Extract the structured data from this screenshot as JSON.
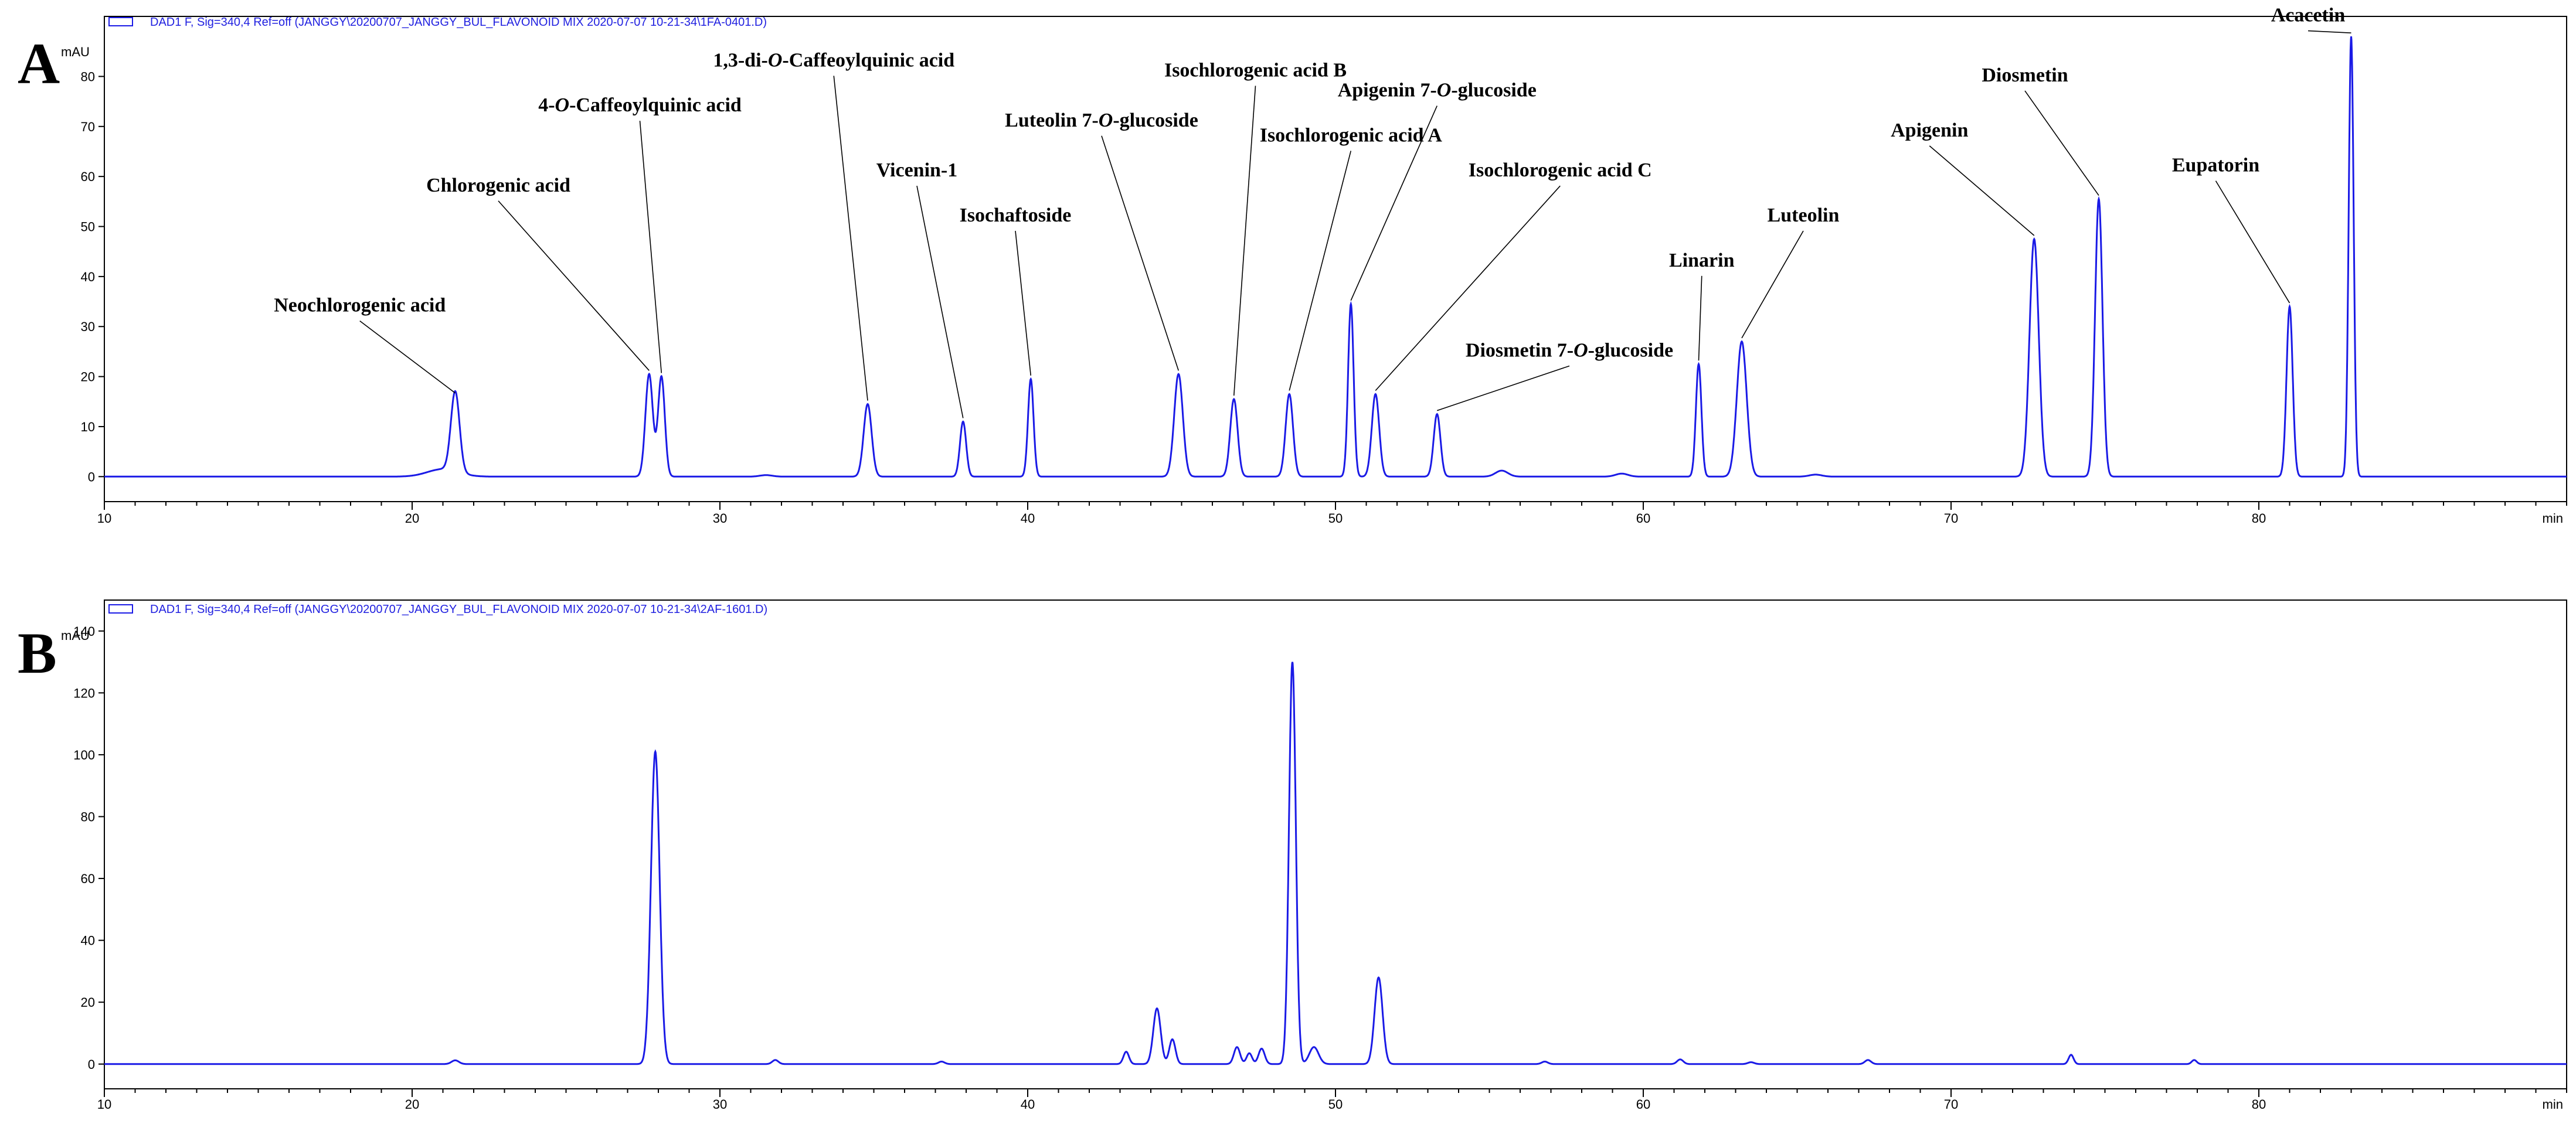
{
  "colors": {
    "trace": "#1a1ae6",
    "legend_text": "#2020e0",
    "frame": "#000000"
  },
  "chart_data": [
    {
      "type": "line",
      "panel": "A",
      "legend": "DAD1 F, Sig=340,4 Ref=off (JANGGY\\20200707_JANGGY_BUL_FLAVONOID MIX 2020-07-07 10-21-34\\1FA-0401.D)",
      "ylabel": "mAU",
      "xlabel": "min",
      "xlim": [
        10,
        90
      ],
      "ylim": [
        -5,
        92
      ],
      "xticks": [
        10,
        20,
        30,
        40,
        50,
        60,
        70,
        80
      ],
      "yticks": [
        0,
        10,
        20,
        30,
        40,
        50,
        60,
        70,
        80
      ],
      "baseline_bumps": [
        {
          "x": 21.0,
          "y": 1.5,
          "w": 0.5
        },
        {
          "x": 31.5,
          "y": 0.3,
          "w": 0.2
        },
        {
          "x": 55.4,
          "y": 1.2,
          "w": 0.2
        },
        {
          "x": 59.3,
          "y": 0.6,
          "w": 0.2
        },
        {
          "x": 65.6,
          "y": 0.4,
          "w": 0.2
        }
      ],
      "peaks": [
        {
          "x": 21.4,
          "y": 16,
          "w": 0.14,
          "label": [
            "Neochlorogenic acid"
          ],
          "lx": 18.3,
          "ly": 33
        },
        {
          "x": 27.7,
          "y": 20.5,
          "w": 0.12,
          "label": [
            "Chlorogenic acid"
          ],
          "lx": 22.8,
          "ly": 57
        },
        {
          "x": 28.1,
          "y": 20,
          "w": 0.11,
          "label": [
            "4-",
            "O",
            "-Caffeoylquinic acid"
          ],
          "lx": 27.4,
          "ly": 73
        },
        {
          "x": 34.8,
          "y": 14.5,
          "w": 0.13,
          "label": [
            "1,3-di-",
            "O",
            "-Caffeoylquinic acid"
          ],
          "lx": 33.7,
          "ly": 82
        },
        {
          "x": 37.9,
          "y": 11,
          "w": 0.1,
          "label": [
            "Vicenin-1"
          ],
          "lx": 36.4,
          "ly": 60
        },
        {
          "x": 40.1,
          "y": 19.5,
          "w": 0.09,
          "label": [
            "Isochaftoside"
          ],
          "lx": 39.6,
          "ly": 51
        },
        {
          "x": 44.9,
          "y": 20.5,
          "w": 0.14,
          "label": [
            "Luteolin 7-",
            "O",
            "-glucoside"
          ],
          "lx": 42.4,
          "ly": 70
        },
        {
          "x": 46.7,
          "y": 15.5,
          "w": 0.12,
          "label": [
            "Isochlorogenic acid B"
          ],
          "lx": 47.4,
          "ly": 80
        },
        {
          "x": 48.5,
          "y": 16.5,
          "w": 0.12,
          "label": [
            "Isochlorogenic acid A"
          ],
          "lx": 50.5,
          "ly": 67
        },
        {
          "x": 50.5,
          "y": 34.5,
          "w": 0.09,
          "label": [
            "Apigenin 7-",
            "O",
            "-glucoside"
          ],
          "lx": 53.3,
          "ly": 76
        },
        {
          "x": 51.3,
          "y": 16.5,
          "w": 0.12,
          "label": [
            "Isochlorogenic acid C"
          ],
          "lx": 57.3,
          "ly": 60
        },
        {
          "x": 53.3,
          "y": 12.5,
          "w": 0.11,
          "label": [
            "Diosmetin 7-",
            "O",
            "-glucoside"
          ],
          "lx": 57.6,
          "ly": 24
        },
        {
          "x": 61.8,
          "y": 22.5,
          "w": 0.09,
          "label": [
            "Linarin"
          ],
          "lx": 61.9,
          "ly": 42
        },
        {
          "x": 63.2,
          "y": 27,
          "w": 0.16,
          "label": [
            "Luteolin"
          ],
          "lx": 65.2,
          "ly": 51
        },
        {
          "x": 72.7,
          "y": 47.5,
          "w": 0.15,
          "label": [
            "Apigenin"
          ],
          "lx": 69.3,
          "ly": 68
        },
        {
          "x": 74.8,
          "y": 55.5,
          "w": 0.12,
          "label": [
            "Diosmetin"
          ],
          "lx": 72.4,
          "ly": 79
        },
        {
          "x": 81.0,
          "y": 34,
          "w": 0.1,
          "label": [
            "Eupatorin"
          ],
          "lx": 78.6,
          "ly": 61
        },
        {
          "x": 83.0,
          "y": 88,
          "w": 0.08,
          "label": [
            "Acacetin"
          ],
          "lx": 81.6,
          "ly": 91
        }
      ]
    },
    {
      "type": "line",
      "panel": "B",
      "legend": "DAD1 F, Sig=340,4 Ref=off (JANGGY\\20200707_JANGGY_BUL_FLAVONOID MIX 2020-07-07 10-21-34\\2AF-1601.D)",
      "ylabel": "mAU",
      "xlabel": "min",
      "xlim": [
        10,
        90
      ],
      "ylim": [
        -8,
        150
      ],
      "xticks": [
        10,
        20,
        30,
        40,
        50,
        60,
        70,
        80
      ],
      "yticks": [
        0,
        20,
        40,
        60,
        80,
        100,
        120,
        140
      ],
      "peaks": [
        {
          "x": 21.4,
          "y": 1.2,
          "w": 0.12
        },
        {
          "x": 27.9,
          "y": 101,
          "w": 0.14
        },
        {
          "x": 31.8,
          "y": 1.3,
          "w": 0.1
        },
        {
          "x": 37.2,
          "y": 0.8,
          "w": 0.1
        },
        {
          "x": 43.2,
          "y": 4,
          "w": 0.09
        },
        {
          "x": 44.2,
          "y": 18,
          "w": 0.12
        },
        {
          "x": 44.7,
          "y": 8,
          "w": 0.1
        },
        {
          "x": 46.8,
          "y": 5.5,
          "w": 0.1
        },
        {
          "x": 47.2,
          "y": 3.5,
          "w": 0.09
        },
        {
          "x": 47.6,
          "y": 5,
          "w": 0.1
        },
        {
          "x": 48.6,
          "y": 130,
          "w": 0.11
        },
        {
          "x": 49.3,
          "y": 5.5,
          "w": 0.15
        },
        {
          "x": 51.4,
          "y": 28,
          "w": 0.13
        },
        {
          "x": 56.8,
          "y": 0.8,
          "w": 0.1
        },
        {
          "x": 61.2,
          "y": 1.5,
          "w": 0.1
        },
        {
          "x": 63.5,
          "y": 0.6,
          "w": 0.1
        },
        {
          "x": 67.3,
          "y": 1.3,
          "w": 0.1
        },
        {
          "x": 73.9,
          "y": 3,
          "w": 0.08
        },
        {
          "x": 77.9,
          "y": 1.3,
          "w": 0.08
        }
      ]
    }
  ]
}
